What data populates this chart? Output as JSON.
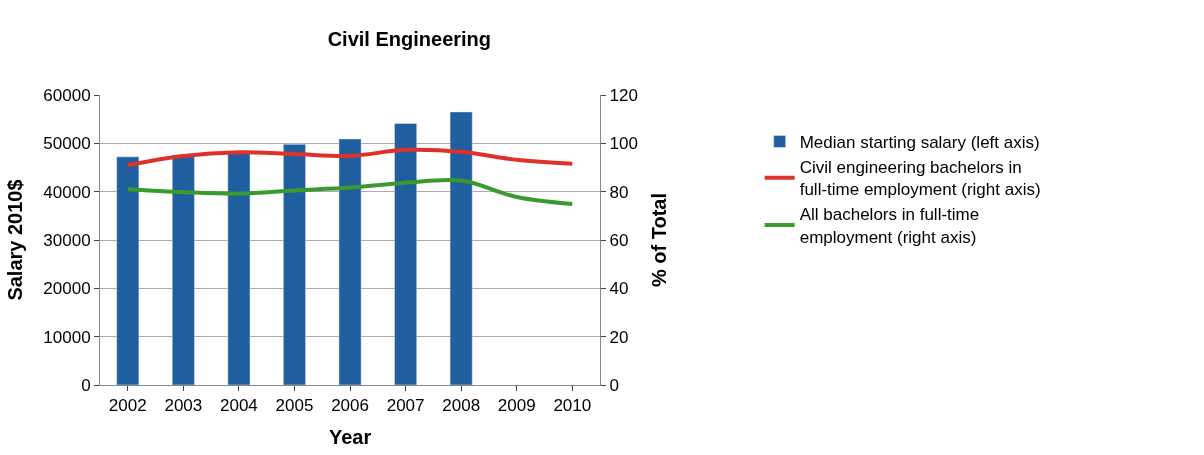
{
  "chart_data": {
    "type": "bar",
    "title": "Civil Engineering",
    "xlabel": "Year",
    "ylabel": "Salary 2010$",
    "y2label": "% of Total",
    "categories": [
      "2002",
      "2003",
      "2004",
      "2005",
      "2006",
      "2007",
      "2008",
      "2009",
      "2010"
    ],
    "series": [
      {
        "name": "Median starting salary (left axis)",
        "color": "#1f5fa0",
        "values": [
          47200,
          47600,
          48200,
          49800,
          50900,
          54100,
          56500,
          null,
          null
        ]
      },
      {
        "name": "Civil engineering bachelors in full-time employment (right axis)",
        "color": "#e0302a",
        "type": "line",
        "axis": "y2",
        "values": [
          91,
          94.8,
          96.3,
          95.6,
          94.8,
          97.3,
          96.5,
          93.2,
          91.6
        ]
      },
      {
        "name": "All bachelors in full-time employment (right axis)",
        "color": "#3a9a2e",
        "type": "line",
        "axis": "y2",
        "values": [
          81,
          79.8,
          79.2,
          80.5,
          81.7,
          83.7,
          84.6,
          77.8,
          74.9
        ]
      }
    ],
    "ylim": [
      0,
      60000
    ],
    "yticks": [
      0,
      10000,
      20000,
      30000,
      40000,
      50000,
      60000
    ],
    "y2lim": [
      0,
      120
    ],
    "y2ticks": [
      0,
      20,
      40,
      60,
      80,
      100,
      120
    ],
    "grid": "y",
    "legend": "right",
    "marker": "none",
    "line_style": "solid"
  }
}
